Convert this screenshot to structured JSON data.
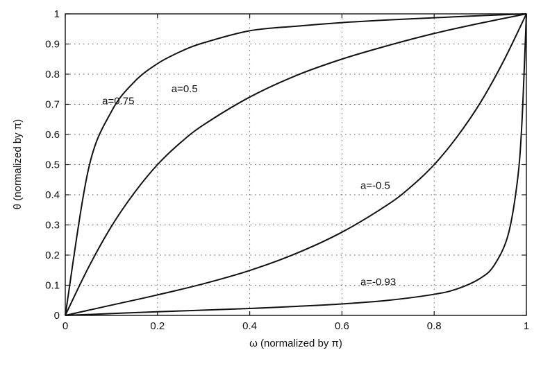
{
  "chart_data": {
    "type": "line",
    "title": "",
    "xlabel": "ω (normalized by π)",
    "ylabel": "θ (normalized by π)",
    "xlim": [
      0,
      1
    ],
    "ylim": [
      0,
      1
    ],
    "grid": true,
    "x_ticks": [
      0,
      0.2,
      0.4,
      0.6,
      0.8,
      1
    ],
    "x_tick_labels": [
      "0",
      "0.2",
      "0.4",
      "0.6",
      "0.8",
      "1"
    ],
    "y_ticks": [
      0,
      0.1,
      0.2,
      0.3,
      0.4,
      0.5,
      0.6,
      0.7,
      0.8,
      0.9,
      1
    ],
    "y_tick_labels": [
      "0",
      "0.1",
      "0.2",
      "0.3",
      "0.4",
      "0.5",
      "0.6",
      "0.7",
      "0.8",
      "0.9",
      "1"
    ],
    "series": [
      {
        "name": "a=0.75",
        "label_at": [
          0.08,
          0.7
        ],
        "x": [
          0,
          0.05,
          0.1,
          0.15,
          0.2,
          0.25,
          0.3,
          0.4,
          0.5,
          0.6,
          0.7,
          0.8,
          0.9,
          1
        ],
        "y": [
          0,
          0.483,
          0.676,
          0.775,
          0.835,
          0.875,
          0.904,
          0.944,
          0.959,
          0.971,
          0.98,
          0.987,
          0.994,
          1
        ]
      },
      {
        "name": "a=0.5",
        "label_at": [
          0.23,
          0.74
        ],
        "x": [
          0,
          0.05,
          0.1,
          0.15,
          0.2,
          0.25,
          0.3,
          0.4,
          0.5,
          0.6,
          0.7,
          0.8,
          0.9,
          1
        ],
        "y": [
          0,
          0.158,
          0.295,
          0.407,
          0.5,
          0.573,
          0.632,
          0.724,
          0.795,
          0.85,
          0.895,
          0.935,
          0.969,
          1
        ]
      },
      {
        "name": "a=-0.5",
        "label_at": [
          0.64,
          0.42
        ],
        "x": [
          0,
          0.1,
          0.2,
          0.3,
          0.4,
          0.5,
          0.6,
          0.7,
          0.75,
          0.8,
          0.85,
          0.9,
          0.95,
          1
        ],
        "y": [
          0,
          0.034,
          0.068,
          0.105,
          0.149,
          0.205,
          0.276,
          0.368,
          0.427,
          0.5,
          0.593,
          0.705,
          0.842,
          1
        ]
      },
      {
        "name": "a=-0.93",
        "label_at": [
          0.64,
          0.1
        ],
        "x": [
          0,
          0.2,
          0.4,
          0.5,
          0.6,
          0.7,
          0.8,
          0.85,
          0.9,
          0.93,
          0.96,
          0.98,
          0.99,
          1
        ],
        "y": [
          0,
          0.012,
          0.023,
          0.03,
          0.038,
          0.05,
          0.07,
          0.088,
          0.123,
          0.166,
          0.265,
          0.44,
          0.63,
          1
        ]
      }
    ]
  }
}
